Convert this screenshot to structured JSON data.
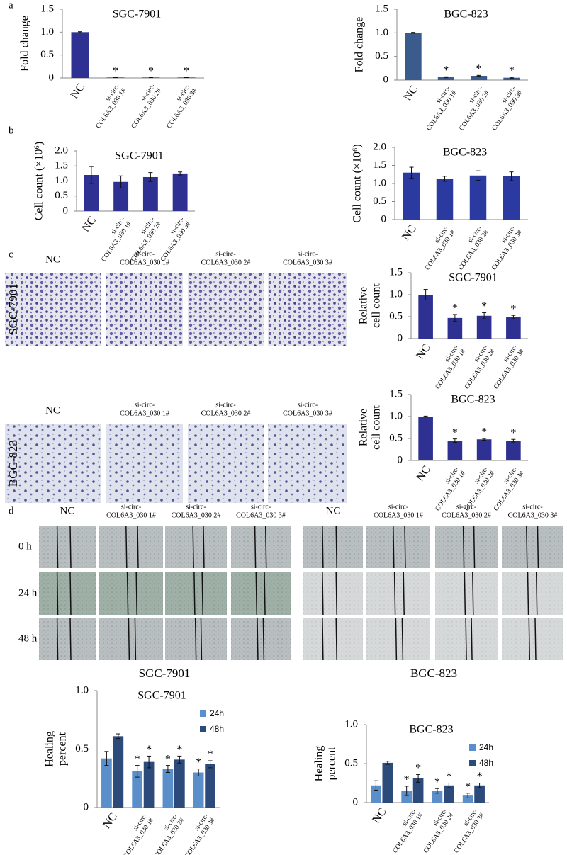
{
  "chart_data": [
    {
      "type": "bar",
      "title": "SGC-7901",
      "ylabel": "Fold change",
      "categories": [
        "NC",
        "si-circ-COL6A3_030 1#",
        "si-circ-COL6A3_030 2#",
        "si-circ-COL6A3_030 3#"
      ],
      "values": [
        1.0,
        0.01,
        0.01,
        0.01
      ],
      "errors": [
        0.01,
        0.003,
        0.003,
        0.003
      ],
      "significance": [
        null,
        "*",
        "*",
        "*"
      ],
      "color": "#2e3192",
      "ylim": [
        0,
        1.5
      ],
      "yticks": [
        0,
        0.5,
        {
          "value": 1,
          "label": "1.0"
        },
        1.5
      ]
    },
    {
      "type": "bar",
      "title": "BGC-823",
      "ylabel": "Fold change",
      "categories": [
        "NC",
        "si-circ-COL6A3_030 1#",
        "si-circ-COL6A3_030 2#",
        "si-circ-COL6A3_030 3#"
      ],
      "values": [
        1.0,
        0.06,
        0.09,
        0.05
      ],
      "errors": [
        0.01,
        0.01,
        0.01,
        0.01
      ],
      "significance": [
        null,
        "*",
        "*",
        "*"
      ],
      "color": "#3b5b8c",
      "ylim": [
        0,
        1.5
      ],
      "yticks": [
        0,
        0.5,
        {
          "value": 1,
          "label": "1.0"
        },
        1.5
      ]
    },
    {
      "type": "bar",
      "title": "SGC-7901",
      "ylabel": "Cell count (×10⁶)",
      "categories": [
        "NC",
        "si-circ-COL6A3_030 1#",
        "si-circ-COL6A3_030 2#",
        "si-circ-COL6A3_030 3#"
      ],
      "values": [
        1.2,
        0.97,
        1.13,
        1.25
      ],
      "errors": [
        0.28,
        0.2,
        0.15,
        0.05
      ],
      "color": "#2e3192",
      "ylim": [
        0,
        2
      ],
      "yticks": [
        0,
        0.5,
        {
          "value": 1,
          "label": "1.0"
        },
        1.5,
        {
          "value": 2,
          "label": "2.0"
        }
      ]
    },
    {
      "type": "bar",
      "title": "BGC-823",
      "ylabel": "Cell count (×10⁶)",
      "categories": [
        "NC",
        "si-circ-COL6A3_030 1#",
        "si-circ-COL6A3_030 2#",
        "si-circ-COL6A3_030 3#"
      ],
      "values": [
        1.3,
        1.13,
        1.22,
        1.2
      ],
      "errors": [
        0.15,
        0.07,
        0.13,
        0.12
      ],
      "color": "#2b3aa0",
      "ylim": [
        0,
        2
      ],
      "yticks": [
        0,
        0.5,
        {
          "value": 1,
          "label": "1.0"
        },
        1.5,
        {
          "value": 2,
          "label": "2.0"
        }
      ]
    },
    {
      "type": "bar",
      "title": "SGC-7901",
      "ylabel": [
        "Relative",
        "cell count"
      ],
      "categories": [
        "NC",
        "si-circ-COL6A3_030 1#",
        "si-circ-COL6A3_030 2#",
        "si-circ-COL6A3_030 3#"
      ],
      "values": [
        1.0,
        0.47,
        0.52,
        0.49
      ],
      "errors": [
        0.12,
        0.08,
        0.07,
        0.04
      ],
      "significance": [
        null,
        "*",
        "*",
        "*"
      ],
      "color": "#2e3192",
      "ylim": [
        0,
        1.5
      ],
      "yticks": [
        0,
        0.5,
        {
          "value": 1,
          "label": "1.0"
        },
        1.5
      ]
    },
    {
      "type": "bar",
      "title": "BGC-823",
      "ylabel": [
        "Relative",
        "cell count"
      ],
      "categories": [
        "NC",
        "si-circ-COL6A3_030 1#",
        "si-circ-COL6A3_030 2#",
        "si-circ-COL6A3_030 3#"
      ],
      "values": [
        1.0,
        0.45,
        0.48,
        0.45
      ],
      "errors": [
        0.01,
        0.04,
        0.02,
        0.03
      ],
      "significance": [
        null,
        "*",
        "*",
        "*"
      ],
      "color": "#2e3192",
      "ylim": [
        0,
        1.5
      ],
      "yticks": [
        0,
        0.5,
        {
          "value": 1,
          "label": "1.0"
        },
        1.5
      ]
    },
    {
      "type": "grouped_bar",
      "title": "SGC-7901",
      "ylabel": [
        "Healing",
        "percent"
      ],
      "categories": [
        "NC",
        "si-circ-COL6A3_030 1#",
        "si-circ-COL6A3_030 2#",
        "si-circ-COL6A3_030 3#"
      ],
      "series": [
        {
          "name": "24h",
          "color": "#5b8fc9",
          "values": [
            0.42,
            0.31,
            0.33,
            0.3
          ],
          "errors": [
            0.06,
            0.05,
            0.03,
            0.03
          ],
          "significance": [
            null,
            "*",
            "*",
            "*"
          ]
        },
        {
          "name": "48h",
          "color": "#2c4a7a",
          "values": [
            0.61,
            0.39,
            0.41,
            0.37
          ],
          "errors": [
            0.02,
            0.05,
            0.03,
            0.03
          ],
          "significance": [
            null,
            "*",
            "*",
            "*"
          ]
        }
      ],
      "ylim": [
        0,
        1
      ],
      "yticks": [
        0,
        0.5,
        {
          "value": 1,
          "label": "1.0"
        }
      ],
      "legend": "right"
    },
    {
      "type": "grouped_bar",
      "title": "BGC-823",
      "ylabel": [
        "Healing",
        "percent"
      ],
      "categories": [
        "NC",
        "si-circ-COL6A3_030 1#",
        "si-circ-COL6A3_030 2#",
        "si-circ-COL6A3_030 3#"
      ],
      "series": [
        {
          "name": "24h",
          "color": "#5b8fc9",
          "values": [
            0.22,
            0.15,
            0.15,
            0.09
          ],
          "errors": [
            0.06,
            0.06,
            0.03,
            0.03
          ],
          "significance": [
            null,
            "*",
            "*",
            "*"
          ]
        },
        {
          "name": "48h",
          "color": "#2c4a7a",
          "values": [
            0.51,
            0.31,
            0.22,
            0.22
          ],
          "errors": [
            0.02,
            0.05,
            0.03,
            0.03
          ],
          "significance": [
            null,
            "*",
            "*",
            "*"
          ]
        }
      ],
      "ylim": [
        0,
        1
      ],
      "yticks": [
        0,
        0.5,
        {
          "value": 1,
          "label": "1.0"
        }
      ],
      "legend": "right"
    }
  ],
  "figure": {
    "panel_labels": [
      "a",
      "b",
      "c",
      "d"
    ],
    "invasion": {
      "headers": [
        [
          "NC"
        ],
        [
          "si-circ-",
          "COL6A3_030 1#"
        ],
        [
          "si-circ-",
          "COL6A3_030 2#"
        ],
        [
          "si-circ-",
          "COL6A3_030 3#"
        ]
      ],
      "rows": [
        "SGC-7901",
        "BGC-823"
      ]
    },
    "migration": {
      "headers": [
        [
          "NC"
        ],
        [
          "si-circ-",
          "COL6A3_030 1#"
        ],
        [
          "si-circ-",
          "COL6A3_030 2#"
        ],
        [
          "si-circ-",
          "COL6A3_030 3#"
        ]
      ],
      "times": [
        "0 h",
        "24 h",
        "48 h"
      ],
      "captions": [
        "SGC-7901",
        "BGC-823"
      ]
    }
  }
}
